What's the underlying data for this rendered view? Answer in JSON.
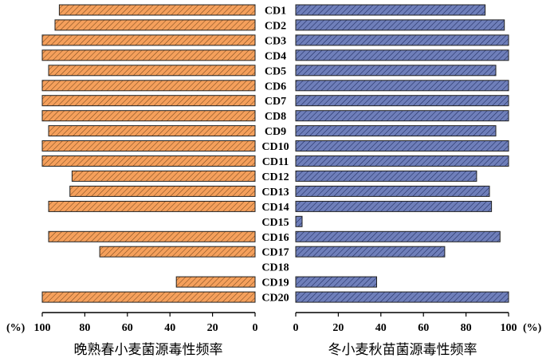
{
  "chart_data": {
    "type": "bar",
    "orientation": "horizontal",
    "layout": "butterfly",
    "categories": [
      "CD1",
      "CD2",
      "CD3",
      "CD4",
      "CD5",
      "CD6",
      "CD7",
      "CD8",
      "CD9",
      "CD10",
      "CD11",
      "CD12",
      "CD13",
      "CD14",
      "CD15",
      "CD16",
      "CD17",
      "CD18",
      "CD19",
      "CD20"
    ],
    "series": [
      {
        "name": "",
        "side": "left",
        "color": "#f5a05c",
        "hatch": "#7a4a1e",
        "values": [
          92,
          94,
          100,
          100,
          97,
          100,
          100,
          100,
          97,
          100,
          100,
          86,
          87,
          97,
          0,
          97,
          73,
          0,
          37,
          100
        ]
      },
      {
        "name": "",
        "side": "right",
        "color": "#6f7fba",
        "hatch": "#1e2a5e",
        "values": [
          89,
          98,
          100,
          100,
          94,
          100,
          100,
          100,
          94,
          100,
          100,
          85,
          91,
          92,
          3,
          96,
          70,
          0,
          38,
          100
        ]
      }
    ],
    "left_axis": {
      "title": "晚熟春小麦菌源毒性频率",
      "unit": "(%)",
      "ticks": [
        "100",
        "80",
        "60",
        "40",
        "20",
        "0"
      ],
      "tick_values": [
        100,
        80,
        60,
        40,
        20,
        0
      ],
      "range": [
        0,
        100
      ]
    },
    "right_axis": {
      "title": "冬小麦秋苗菌源毒性频率",
      "unit": "(%)",
      "ticks": [
        "0",
        "20",
        "40",
        "60",
        "80",
        "100"
      ],
      "tick_values": [
        0,
        20,
        40,
        60,
        80,
        100
      ],
      "range": [
        0,
        100
      ]
    },
    "grid": false,
    "legend": "none"
  }
}
